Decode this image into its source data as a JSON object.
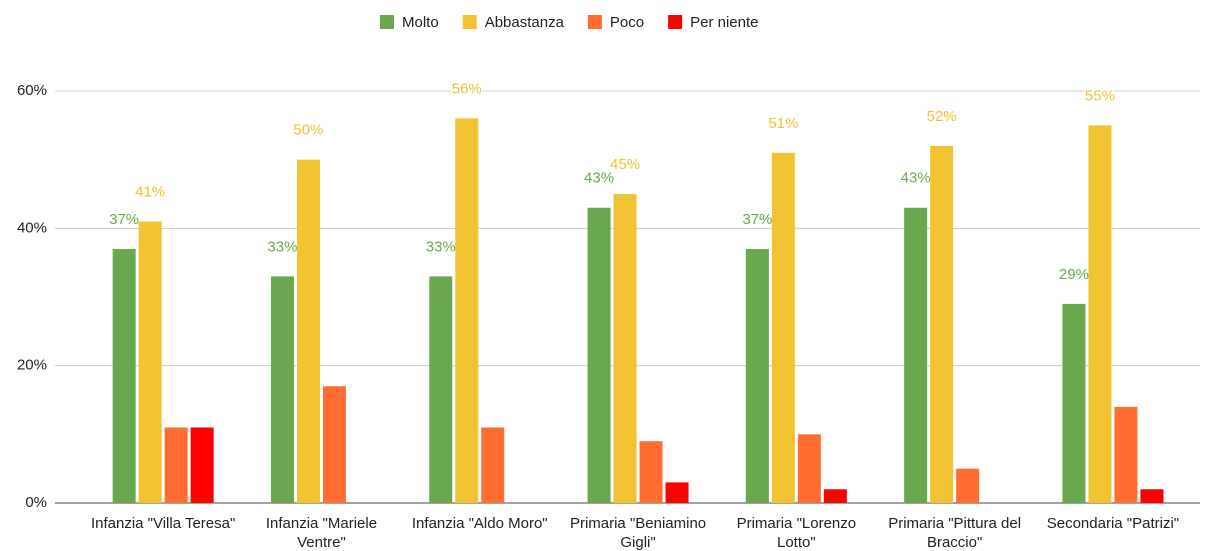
{
  "chart_data": {
    "type": "bar",
    "categories": [
      "Infanzia \"Villa Teresa\"",
      "Infanzia \"Mariele Ventre\"",
      "Infanzia \"Aldo Moro\"",
      "Primaria \"Beniamino Gigli\"",
      "Primaria \"Lorenzo Lotto\"",
      "Primaria \"Pittura del Braccio\"",
      "Secondaria \"Patrizi\""
    ],
    "series": [
      {
        "name": "Molto",
        "color": "#6aa84f",
        "values": [
          37,
          33,
          33,
          43,
          37,
          43,
          29
        ],
        "value_labels": [
          "37%",
          "33%",
          "33%",
          "43%",
          "37%",
          "43%",
          "29%"
        ]
      },
      {
        "name": "Abbastanza",
        "color": "#f1c232",
        "values": [
          41,
          50,
          56,
          45,
          51,
          52,
          55
        ],
        "value_labels": [
          "41%",
          "50%",
          "56%",
          "45%",
          "51%",
          "52%",
          "55%"
        ]
      },
      {
        "name": "Poco",
        "color": "#ff6d31",
        "values": [
          11,
          17,
          11,
          9,
          10,
          5,
          14
        ]
      },
      {
        "name": "Per niente",
        "color": "#ff0000",
        "values": [
          11,
          0,
          0,
          3,
          2,
          0,
          2
        ]
      }
    ],
    "ylim": [
      0,
      60
    ],
    "yticks": [
      {
        "value": 0,
        "label": "0%"
      },
      {
        "value": 20,
        "label": "20%"
      },
      {
        "value": 40,
        "label": "40%"
      },
      {
        "value": 60,
        "label": "60%"
      }
    ],
    "grid": true,
    "legend": "top"
  }
}
